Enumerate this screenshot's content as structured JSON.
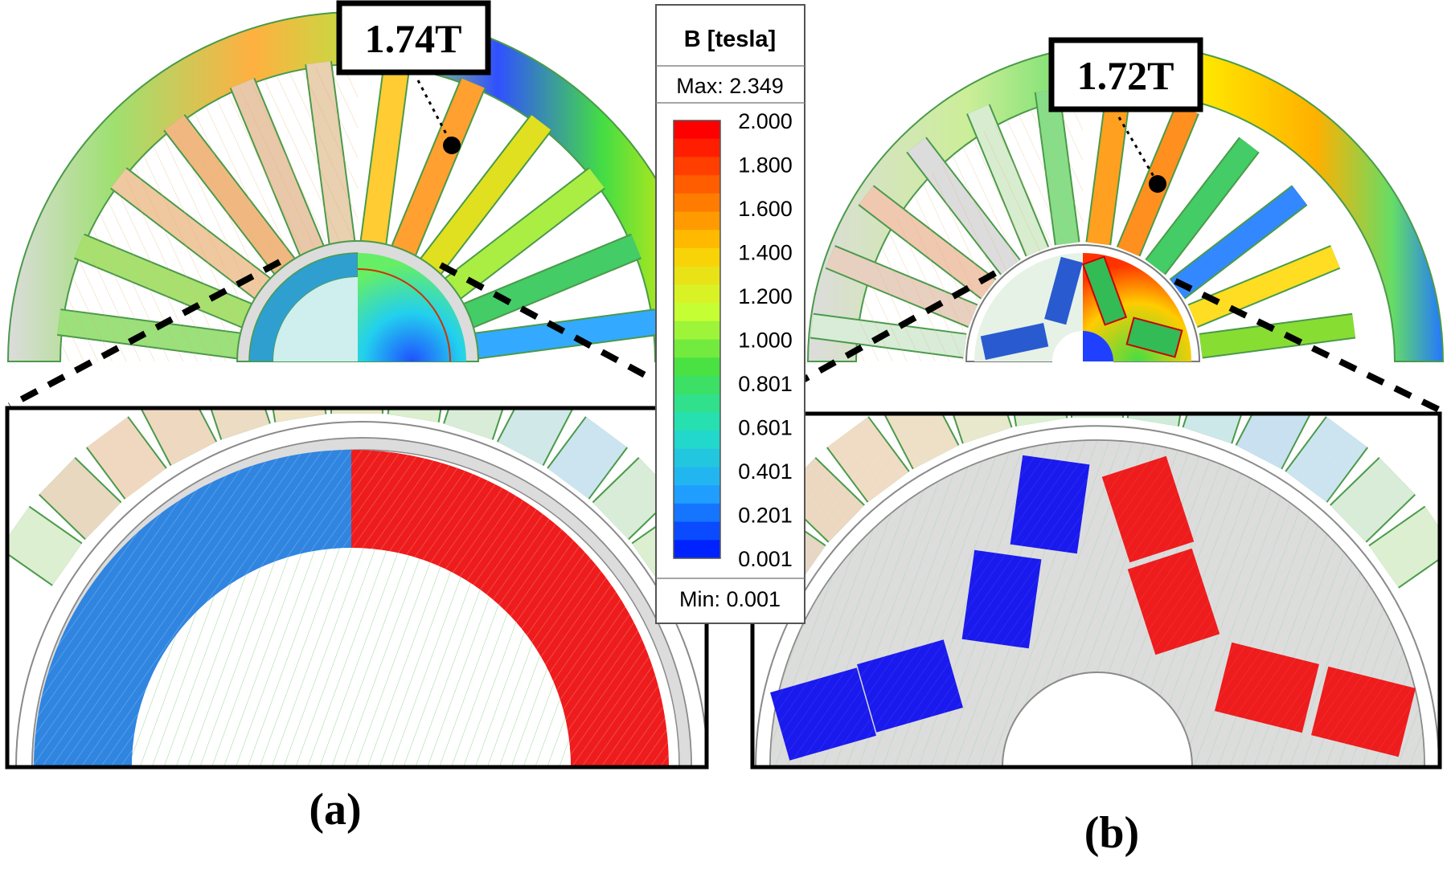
{
  "panels": [
    {
      "id": "a",
      "label": "(a)",
      "callout": "1.74T"
    },
    {
      "id": "b",
      "label": "(b)",
      "callout": "1.72T"
    }
  ],
  "legend": {
    "title": "B [tesla]",
    "max_label": "Max: 2.349",
    "min_label": "Min: 0.001",
    "ticks": [
      "2.000",
      "1.800",
      "1.600",
      "1.400",
      "1.200",
      "1.000",
      "0.801",
      "0.601",
      "0.401",
      "0.201",
      "0.001"
    ],
    "gradient_colors": [
      "#ff0000",
      "#ff6600",
      "#ffcc00",
      "#ccff33",
      "#44e044",
      "#22e0c0",
      "#22aaff",
      "#0022ff"
    ]
  },
  "colors": {
    "iron_gray": "#dcdcdc",
    "outline_green": "#4a9a4a",
    "magnet_red": "#ee1c1c",
    "magnet_blue": "#1a1aee",
    "magnet_light_blue": "#2f7fe0"
  }
}
